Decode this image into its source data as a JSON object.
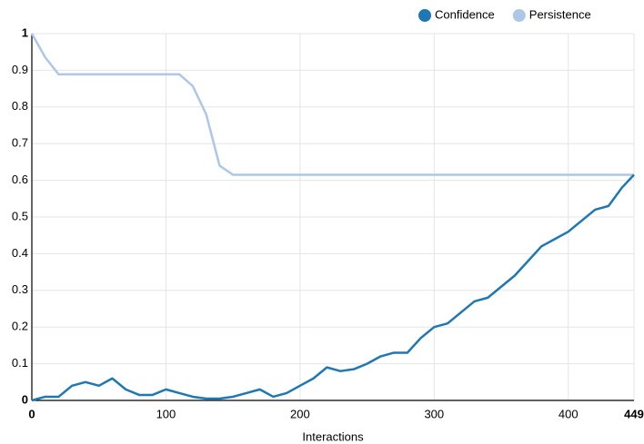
{
  "chart_data": {
    "type": "line",
    "x_label": "Interactions",
    "x": [
      0,
      10,
      20,
      30,
      40,
      50,
      60,
      70,
      80,
      90,
      100,
      110,
      120,
      130,
      140,
      150,
      160,
      170,
      180,
      190,
      200,
      210,
      220,
      230,
      240,
      250,
      260,
      270,
      280,
      290,
      300,
      310,
      320,
      330,
      340,
      350,
      360,
      370,
      380,
      390,
      400,
      410,
      420,
      430,
      440,
      449
    ],
    "series": [
      {
        "name": "Confidence",
        "color": "#1f77b4",
        "values": [
          0,
          0.01,
          0.01,
          0.04,
          0.05,
          0.04,
          0.06,
          0.03,
          0.015,
          0.015,
          0.03,
          0.02,
          0.01,
          0.005,
          0.005,
          0.01,
          0.02,
          0.03,
          0.01,
          0.02,
          0.04,
          0.06,
          0.09,
          0.08,
          0.085,
          0.1,
          0.12,
          0.13,
          0.13,
          0.17,
          0.2,
          0.21,
          0.24,
          0.27,
          0.28,
          0.31,
          0.34,
          0.38,
          0.42,
          0.44,
          0.46,
          0.49,
          0.52,
          0.53,
          0.58,
          0.615
        ]
      },
      {
        "name": "Persistence",
        "color": "#aec7e8",
        "values": [
          1,
          0.935,
          0.889,
          0.889,
          0.889,
          0.889,
          0.889,
          0.889,
          0.889,
          0.889,
          0.889,
          0.889,
          0.857,
          0.78,
          0.64,
          0.615,
          0.615,
          0.615,
          0.615,
          0.615,
          0.615,
          0.615,
          0.615,
          0.615,
          0.615,
          0.615,
          0.615,
          0.615,
          0.615,
          0.615,
          0.615,
          0.615,
          0.615,
          0.615,
          0.615,
          0.615,
          0.615,
          0.615,
          0.615,
          0.615,
          0.615,
          0.615,
          0.615,
          0.615,
          0.615,
          0.615
        ]
      }
    ],
    "xlim": [
      0,
      449
    ],
    "xticks": [
      0,
      100,
      200,
      300,
      400,
      449
    ],
    "ylim": [
      0,
      1
    ],
    "yticks": [
      0,
      0.1,
      0.2,
      0.3,
      0.4,
      0.5,
      0.6,
      0.7,
      0.8,
      0.9,
      1
    ],
    "grid": true,
    "legend": "top-right"
  }
}
